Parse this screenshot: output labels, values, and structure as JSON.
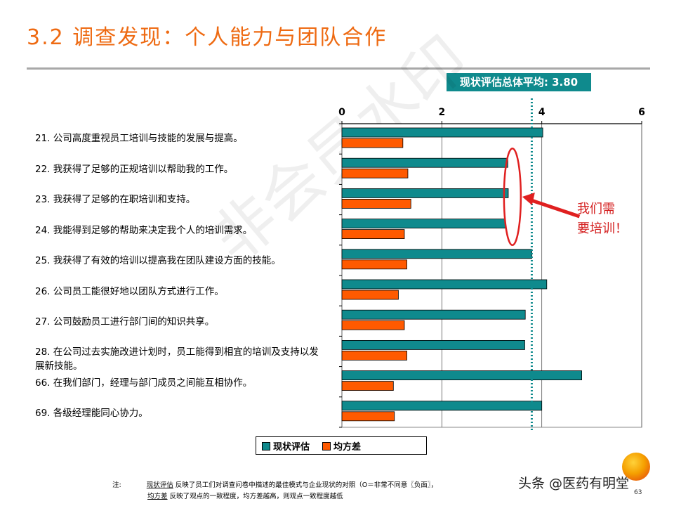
{
  "slide": {
    "title": "3.2 调查发现：个人能力与团队合作",
    "average_label": "现状评估总体平均: 3.80",
    "callout_line1": "我们需",
    "callout_line2": "要培训！",
    "watermark": "非会员水印",
    "brand": "头条 @医药有明堂",
    "page_number": "63"
  },
  "questions": [
    {
      "num": "21.",
      "text": "公司高度重视员工培训与技能的发展与提高。"
    },
    {
      "num": "22.",
      "text": "我获得了足够的正规培训以帮助我的工作。"
    },
    {
      "num": "23.",
      "text": "我获得了足够的在职培训和支持。"
    },
    {
      "num": "24.",
      "text": "我能得到足够的帮助来决定我个人的培训需求。"
    },
    {
      "num": "25.",
      "text": "我获得了有效的培训以提高我在团队建设方面的技能。"
    },
    {
      "num": "26.",
      "text": "公司员工能很好地以团队方式进行工作。"
    },
    {
      "num": "27.",
      "text": "公司鼓励员工进行部门间的知识共享。"
    },
    {
      "num": "28.",
      "text": "在公司过去实施改进计划时，员工能得到相宜的培训及支持以发展新技能。"
    },
    {
      "num": "66.",
      "text": "在我们部门，经理与部门成员之间能互相协作。"
    },
    {
      "num": "69.",
      "text": "各级经理能同心协力。"
    }
  ],
  "legend": {
    "series1": "现状评估",
    "series2": "均方差"
  },
  "note": {
    "prefix": "注:",
    "line1_term": "现状评估",
    "line1_text": " 反映了员工们对调查问卷中描述的最佳模式与企业现状的对照（O＝非常不同意〖负面〗，",
    "line2_term": "均方差",
    "line2_text": " 反映了观点的一致程度，均方差越高，则观点一致程度越低"
  },
  "colors": {
    "title": "#ee6a12",
    "teal": "#0f8a8d",
    "orange": "#ff5a00",
    "callout": "#d42020"
  },
  "chart_data": {
    "type": "bar",
    "orientation": "horizontal",
    "categories": [
      "21",
      "22",
      "23",
      "24",
      "25",
      "26",
      "27",
      "28",
      "66",
      "69"
    ],
    "series": [
      {
        "name": "现状评估",
        "color": "#0f8a8d",
        "values": [
          4.02,
          3.32,
          3.33,
          3.27,
          3.8,
          4.1,
          3.67,
          3.66,
          4.8,
          4.0
        ]
      },
      {
        "name": "均方差",
        "color": "#ff5a00",
        "values": [
          1.22,
          1.32,
          1.38,
          1.25,
          1.3,
          1.13,
          1.25,
          1.3,
          1.03,
          1.05
        ]
      }
    ],
    "xlim": [
      0,
      6
    ],
    "x_ticks": [
      "0",
      "2",
      "4",
      "6"
    ],
    "average": 3.8,
    "grid": true,
    "legend_position": "bottom"
  }
}
